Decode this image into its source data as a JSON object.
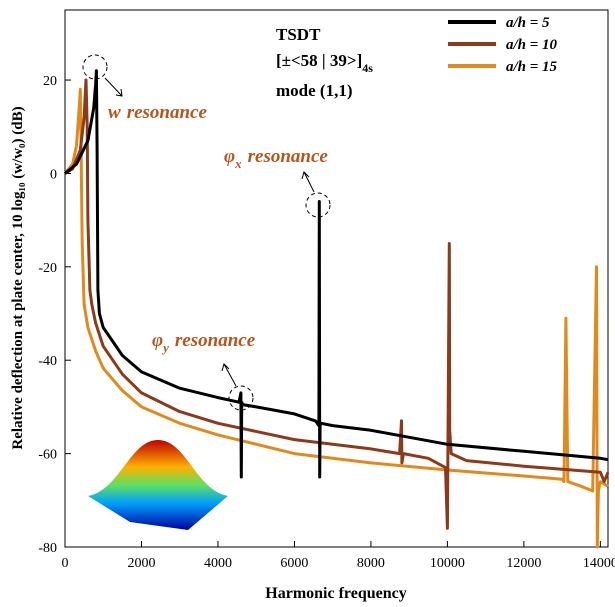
{
  "chart_data": {
    "type": "line",
    "x_label": "Harmonic frequency",
    "y_label": "Relative deflection at plate center, 10 log₁₀ (w/w₀) (dB)",
    "title_lines": [
      {
        "text": "TSDT"
      },
      {
        "text": "[±<58 | 39>]",
        "subscript": "4s"
      },
      {
        "text": "mode (1,1)"
      }
    ],
    "annotations": [
      {
        "symbol": "w",
        "subscript": "",
        "text": "resonance"
      },
      {
        "symbol": "φ",
        "subscript": "x",
        "text": "resonance"
      },
      {
        "symbol": "φ",
        "subscript": "y",
        "text": "resonance"
      }
    ],
    "xlim": [
      0,
      14200
    ],
    "ylim": [
      -80,
      35
    ],
    "xticks": [
      0,
      2000,
      4000,
      6000,
      8000,
      10000,
      12000,
      14000
    ],
    "yticks": [
      -80,
      -60,
      -40,
      -20,
      0,
      20
    ],
    "legend": "top-right",
    "series": [
      {
        "name": "a/h = 5",
        "color": "#000000",
        "x": [
          0,
          300,
          600,
          750,
          800,
          820,
          840,
          860,
          900,
          1000,
          1500,
          2000,
          3000,
          4000,
          4550,
          4600,
          4610,
          4620,
          4650,
          5000,
          6000,
          6550,
          6640,
          6650,
          6660,
          6670,
          6700,
          7000,
          8000,
          10000,
          12000,
          14000,
          14200
        ],
        "values": [
          0,
          2,
          7,
          14,
          19,
          22,
          5,
          -25,
          -30,
          -33,
          -39,
          -42.5,
          -46,
          -48,
          -49,
          -47,
          -65,
          -49,
          -49.5,
          -50,
          -51.5,
          -53,
          -54,
          -6,
          -65,
          -54,
          -53.5,
          -54,
          -55,
          -58,
          -59.5,
          -61,
          -61.3
        ]
      },
      {
        "name": "a/h = 10",
        "color": "#8b3a1a",
        "x": [
          0,
          200,
          400,
          500,
          550,
          580,
          600,
          650,
          700,
          800,
          1000,
          1500,
          2000,
          3000,
          4000,
          6000,
          8000,
          8750,
          8800,
          8810,
          8850,
          9500,
          9950,
          10000,
          10050,
          10060,
          10100,
          10500,
          12000,
          14000,
          14100,
          14200
        ],
        "values": [
          0,
          1,
          5,
          12,
          20,
          10,
          -10,
          -25,
          -28,
          -32,
          -37,
          -43,
          -47,
          -51,
          -53.5,
          -57,
          -59,
          -60,
          -53,
          -62,
          -60,
          -61,
          -63,
          -76,
          -15,
          -55,
          -60,
          -61.5,
          -62.7,
          -64,
          -66,
          -64
        ]
      },
      {
        "name": "a/h = 15",
        "color": "#e08a1e",
        "x": [
          0,
          200,
          300,
          380,
          400,
          420,
          450,
          500,
          600,
          800,
          1000,
          1500,
          2000,
          3000,
          4000,
          6000,
          8000,
          10000,
          12000,
          13000,
          13050,
          13100,
          13150,
          13500,
          13800,
          13900,
          13920,
          13950,
          14000,
          14200
        ],
        "values": [
          0,
          2,
          6,
          15,
          18,
          5,
          -15,
          -28,
          -33,
          -38,
          -41.7,
          -46.5,
          -50,
          -53.5,
          -56,
          -60,
          -62,
          -63.5,
          -64.8,
          -65.5,
          -66,
          -31,
          -66,
          -67,
          -68,
          -20,
          -80,
          -68,
          -66,
          -67
        ]
      }
    ]
  }
}
